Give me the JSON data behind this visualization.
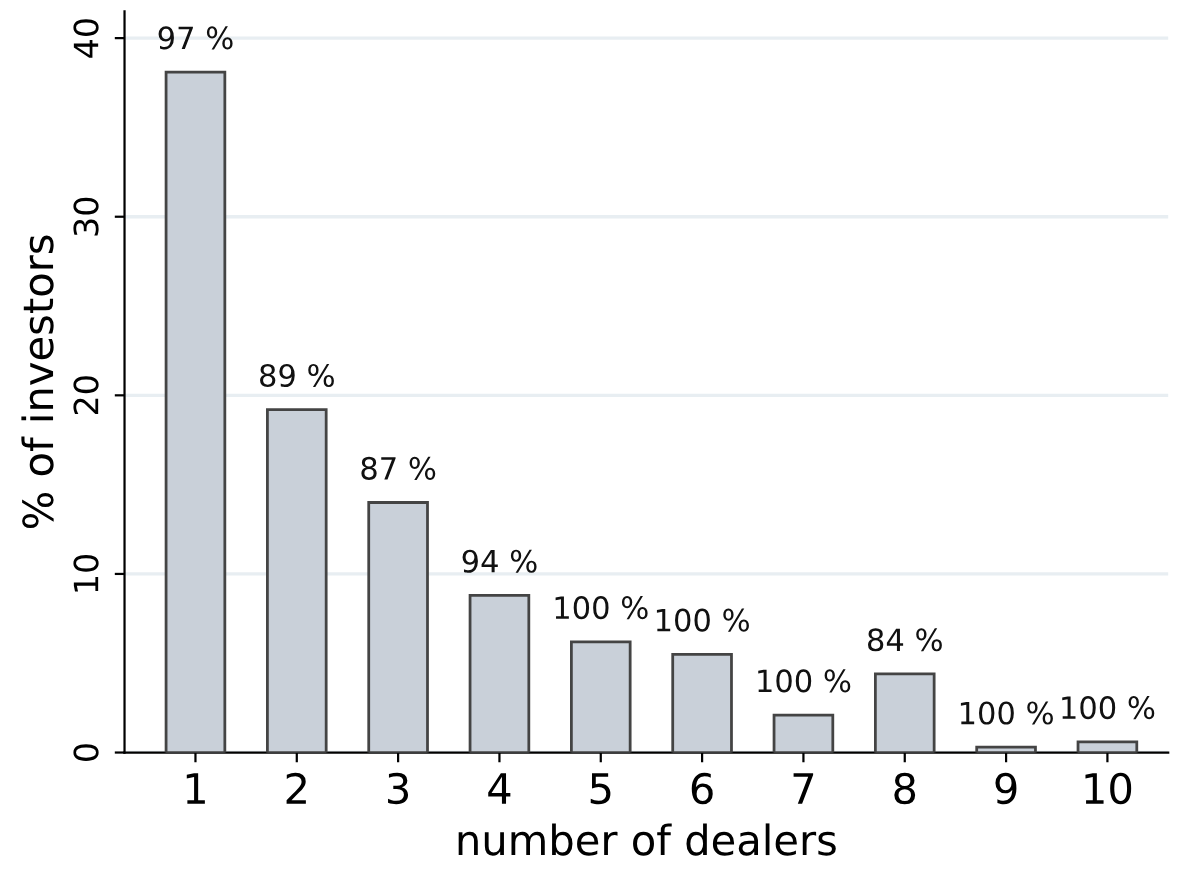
{
  "chart_data": {
    "type": "bar",
    "xlabel": "number of dealers",
    "ylabel": "% of investors",
    "categories": [
      "1",
      "2",
      "3",
      "4",
      "5",
      "6",
      "7",
      "8",
      "9",
      "10"
    ],
    "values": [
      38.1,
      19.2,
      14.0,
      8.8,
      6.2,
      5.5,
      2.1,
      4.4,
      0.3,
      0.6
    ],
    "annotations": [
      {
        "text": "97 %",
        "x": "1",
        "y": 38.1
      },
      {
        "text": "89 %",
        "x": "2",
        "y": 19.2
      },
      {
        "text": "87 %",
        "x": "3",
        "y": 14.0
      },
      {
        "text": "94 %",
        "x": "4",
        "y": 8.8
      },
      {
        "text": "100 %",
        "x": "5",
        "y": 6.2
      },
      {
        "text": "100 %",
        "x": "6",
        "y": 5.5
      },
      {
        "text": "100 %",
        "x": "7",
        "y": 2.1
      },
      {
        "text": "84 %",
        "x": "8",
        "y": 4.4
      },
      {
        "text": "100 %",
        "x": "9",
        "y": 0.3
      },
      {
        "text": "100 %",
        "x": "10",
        "y": 0.6
      }
    ],
    "color": "#c9d0d9",
    "ylim": [
      0,
      41.5
    ],
    "yticks": [
      0,
      10,
      20,
      30,
      40
    ],
    "grid": "y"
  }
}
